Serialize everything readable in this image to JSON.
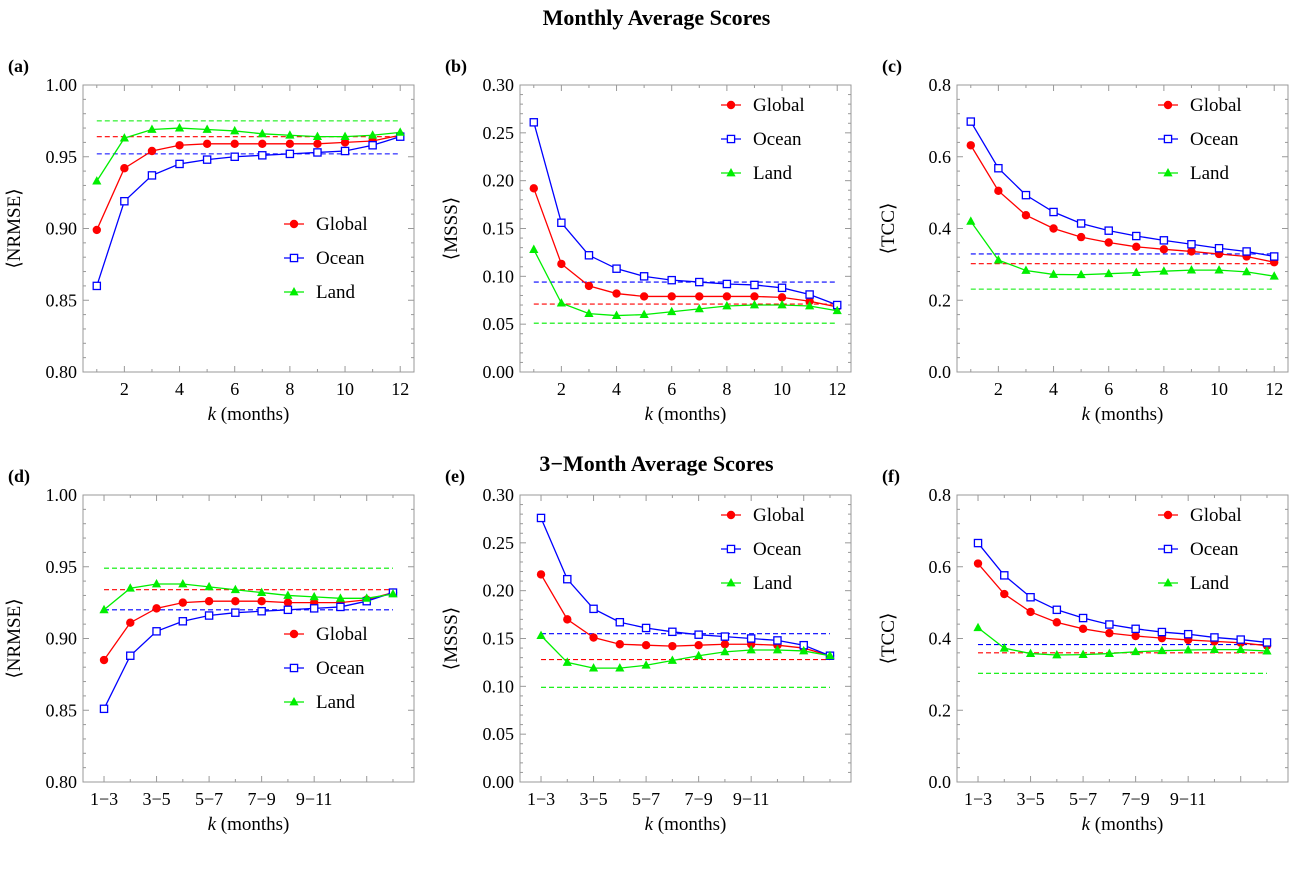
{
  "titles": {
    "top": "Monthly Average Scores",
    "bottom": "3−Month Average Scores"
  },
  "colors": {
    "Global": "#ff0000",
    "Ocean": "#0000ff",
    "Land": "#00ee00"
  },
  "chart_data": [
    {
      "id": "a",
      "panel_label": "(a)",
      "type": "line",
      "ylabel": "⟨NRMSE⟩",
      "xlabel_italic": "k",
      "xlabel_rest": " (months)",
      "x": [
        1,
        2,
        3,
        4,
        5,
        6,
        7,
        8,
        9,
        10,
        11,
        12
      ],
      "xlim": [
        0.5,
        12.5
      ],
      "ylim": [
        0.8,
        1.0
      ],
      "xticks": [
        2,
        4,
        6,
        8,
        10,
        12
      ],
      "xtick_labels": [
        "2",
        "4",
        "6",
        "8",
        "10",
        "12"
      ],
      "yticks": [
        0.8,
        0.85,
        0.9,
        0.95,
        1.0
      ],
      "ytick_labels": [
        "0.80",
        "0.85",
        "0.90",
        "0.95",
        "1.00"
      ],
      "legend": "lower-right",
      "series": [
        {
          "name": "Global",
          "marker": "circle",
          "values": [
            0.899,
            0.942,
            0.954,
            0.958,
            0.959,
            0.959,
            0.959,
            0.959,
            0.959,
            0.96,
            0.961,
            0.965
          ],
          "baseline": 0.964
        },
        {
          "name": "Ocean",
          "marker": "square",
          "values": [
            0.86,
            0.919,
            0.937,
            0.945,
            0.948,
            0.95,
            0.951,
            0.952,
            0.953,
            0.954,
            0.958,
            0.964
          ],
          "baseline": 0.952
        },
        {
          "name": "Land",
          "marker": "triangle",
          "values": [
            0.933,
            0.963,
            0.969,
            0.97,
            0.969,
            0.968,
            0.966,
            0.965,
            0.964,
            0.964,
            0.965,
            0.967
          ],
          "baseline": 0.975
        }
      ]
    },
    {
      "id": "b",
      "panel_label": "(b)",
      "type": "line",
      "ylabel": "⟨MSSS⟩",
      "xlabel_italic": "k",
      "xlabel_rest": " (months)",
      "x": [
        1,
        2,
        3,
        4,
        5,
        6,
        7,
        8,
        9,
        10,
        11,
        12
      ],
      "xlim": [
        0.5,
        12.5
      ],
      "ylim": [
        0.0,
        0.3
      ],
      "xticks": [
        2,
        4,
        6,
        8,
        10,
        12
      ],
      "xtick_labels": [
        "2",
        "4",
        "6",
        "8",
        "10",
        "12"
      ],
      "yticks": [
        0.0,
        0.05,
        0.1,
        0.15,
        0.2,
        0.25,
        0.3
      ],
      "ytick_labels": [
        "0.00",
        "0.05",
        "0.10",
        "0.15",
        "0.20",
        "0.25",
        "0.30"
      ],
      "legend": "top-right",
      "series": [
        {
          "name": "Global",
          "marker": "circle",
          "values": [
            0.192,
            0.113,
            0.09,
            0.082,
            0.079,
            0.079,
            0.079,
            0.079,
            0.079,
            0.078,
            0.074,
            0.068
          ],
          "baseline": 0.071
        },
        {
          "name": "Ocean",
          "marker": "square",
          "values": [
            0.261,
            0.156,
            0.122,
            0.108,
            0.1,
            0.096,
            0.094,
            0.092,
            0.091,
            0.088,
            0.081,
            0.07
          ],
          "baseline": 0.094
        },
        {
          "name": "Land",
          "marker": "triangle",
          "values": [
            0.128,
            0.072,
            0.061,
            0.059,
            0.06,
            0.063,
            0.066,
            0.069,
            0.07,
            0.07,
            0.069,
            0.064
          ],
          "baseline": 0.051
        }
      ]
    },
    {
      "id": "c",
      "panel_label": "(c)",
      "type": "line",
      "ylabel": "⟨TCC⟩",
      "xlabel_italic": "k",
      "xlabel_rest": " (months)",
      "x": [
        1,
        2,
        3,
        4,
        5,
        6,
        7,
        8,
        9,
        10,
        11,
        12
      ],
      "xlim": [
        0.5,
        12.5
      ],
      "ylim": [
        0.0,
        0.8
      ],
      "xticks": [
        2,
        4,
        6,
        8,
        10,
        12
      ],
      "xtick_labels": [
        "2",
        "4",
        "6",
        "8",
        "10",
        "12"
      ],
      "yticks": [
        0.0,
        0.2,
        0.4,
        0.6,
        0.8
      ],
      "ytick_labels": [
        "0.0",
        "0.2",
        "0.4",
        "0.6",
        "0.8"
      ],
      "legend": "top-right",
      "series": [
        {
          "name": "Global",
          "marker": "circle",
          "values": [
            0.632,
            0.505,
            0.437,
            0.4,
            0.376,
            0.361,
            0.349,
            0.342,
            0.336,
            0.329,
            0.322,
            0.306
          ],
          "baseline": 0.302
        },
        {
          "name": "Ocean",
          "marker": "square",
          "values": [
            0.698,
            0.568,
            0.493,
            0.446,
            0.414,
            0.394,
            0.379,
            0.367,
            0.356,
            0.345,
            0.336,
            0.322
          ],
          "baseline": 0.329
        },
        {
          "name": "Land",
          "marker": "triangle",
          "values": [
            0.42,
            0.312,
            0.283,
            0.272,
            0.271,
            0.274,
            0.277,
            0.281,
            0.284,
            0.284,
            0.279,
            0.267
          ],
          "baseline": 0.231
        }
      ]
    },
    {
      "id": "d",
      "panel_label": "(d)",
      "type": "line",
      "ylabel": "⟨NRMSE⟩",
      "xlabel_italic": "k",
      "xlabel_rest": " (months)",
      "x": [
        1,
        2,
        3,
        4,
        5,
        6,
        7,
        8,
        9,
        10,
        11,
        12
      ],
      "xlim": [
        0.2,
        12.8
      ],
      "ylim": [
        0.8,
        1.0
      ],
      "xticks": [
        1,
        3,
        5,
        7,
        9,
        11
      ],
      "xtick_labels": [
        "1−3",
        "3−5",
        "5−7",
        "7−9",
        "9−11",
        ""
      ],
      "yticks": [
        0.8,
        0.85,
        0.9,
        0.95,
        1.0
      ],
      "ytick_labels": [
        "0.80",
        "0.85",
        "0.90",
        "0.95",
        "1.00"
      ],
      "legend": "lower-right",
      "series": [
        {
          "name": "Global",
          "marker": "circle",
          "values": [
            0.885,
            0.911,
            0.921,
            0.925,
            0.926,
            0.926,
            0.926,
            0.925,
            0.925,
            0.925,
            0.927,
            0.932
          ],
          "baseline": 0.934
        },
        {
          "name": "Ocean",
          "marker": "square",
          "values": [
            0.851,
            0.888,
            0.905,
            0.912,
            0.916,
            0.918,
            0.919,
            0.92,
            0.921,
            0.922,
            0.926,
            0.932
          ],
          "baseline": 0.92
        },
        {
          "name": "Land",
          "marker": "triangle",
          "values": [
            0.92,
            0.935,
            0.938,
            0.938,
            0.936,
            0.934,
            0.932,
            0.93,
            0.929,
            0.928,
            0.928,
            0.931
          ],
          "baseline": 0.949
        }
      ]
    },
    {
      "id": "e",
      "panel_label": "(e)",
      "type": "line",
      "ylabel": "⟨MSSS⟩",
      "xlabel_italic": "k",
      "xlabel_rest": " (months)",
      "x": [
        1,
        2,
        3,
        4,
        5,
        6,
        7,
        8,
        9,
        10,
        11,
        12
      ],
      "xlim": [
        0.2,
        12.8
      ],
      "ylim": [
        0.0,
        0.3
      ],
      "xticks": [
        1,
        3,
        5,
        7,
        9,
        11
      ],
      "xtick_labels": [
        "1−3",
        "3−5",
        "5−7",
        "7−9",
        "9−11",
        ""
      ],
      "yticks": [
        0.0,
        0.05,
        0.1,
        0.15,
        0.2,
        0.25,
        0.3
      ],
      "ytick_labels": [
        "0.00",
        "0.05",
        "0.10",
        "0.15",
        "0.20",
        "0.25",
        "0.30"
      ],
      "legend": "top-right",
      "series": [
        {
          "name": "Global",
          "marker": "circle",
          "values": [
            0.217,
            0.17,
            0.151,
            0.144,
            0.143,
            0.142,
            0.143,
            0.144,
            0.144,
            0.143,
            0.14,
            0.132
          ],
          "baseline": 0.128
        },
        {
          "name": "Ocean",
          "marker": "square",
          "values": [
            0.276,
            0.212,
            0.181,
            0.167,
            0.161,
            0.157,
            0.154,
            0.152,
            0.15,
            0.148,
            0.143,
            0.132
          ],
          "baseline": 0.155
        },
        {
          "name": "Land",
          "marker": "triangle",
          "values": [
            0.153,
            0.125,
            0.119,
            0.119,
            0.122,
            0.127,
            0.132,
            0.136,
            0.138,
            0.138,
            0.137,
            0.132
          ],
          "baseline": 0.099
        }
      ]
    },
    {
      "id": "f",
      "panel_label": "(f)",
      "type": "line",
      "ylabel": "⟨TCC⟩",
      "xlabel_italic": "k",
      "xlabel_rest": " (months)",
      "x": [
        1,
        2,
        3,
        4,
        5,
        6,
        7,
        8,
        9,
        10,
        11,
        12
      ],
      "xlim": [
        0.2,
        12.8
      ],
      "ylim": [
        0.0,
        0.8
      ],
      "xticks": [
        1,
        3,
        5,
        7,
        9,
        11
      ],
      "xtick_labels": [
        "1−3",
        "3−5",
        "5−7",
        "7−9",
        "9−11",
        ""
      ],
      "yticks": [
        0.0,
        0.2,
        0.4,
        0.6,
        0.8
      ],
      "ytick_labels": [
        "0.0",
        "0.2",
        "0.4",
        "0.6",
        "0.8"
      ],
      "legend": "top-right",
      "series": [
        {
          "name": "Global",
          "marker": "circle",
          "values": [
            0.609,
            0.524,
            0.474,
            0.445,
            0.427,
            0.415,
            0.407,
            0.401,
            0.396,
            0.392,
            0.388,
            0.38
          ],
          "baseline": 0.36
        },
        {
          "name": "Ocean",
          "marker": "square",
          "values": [
            0.666,
            0.576,
            0.515,
            0.48,
            0.457,
            0.439,
            0.427,
            0.418,
            0.412,
            0.403,
            0.397,
            0.389
          ],
          "baseline": 0.383
        },
        {
          "name": "Land",
          "marker": "triangle",
          "values": [
            0.43,
            0.373,
            0.358,
            0.354,
            0.355,
            0.358,
            0.363,
            0.366,
            0.368,
            0.369,
            0.369,
            0.365
          ],
          "baseline": 0.303
        }
      ]
    }
  ]
}
